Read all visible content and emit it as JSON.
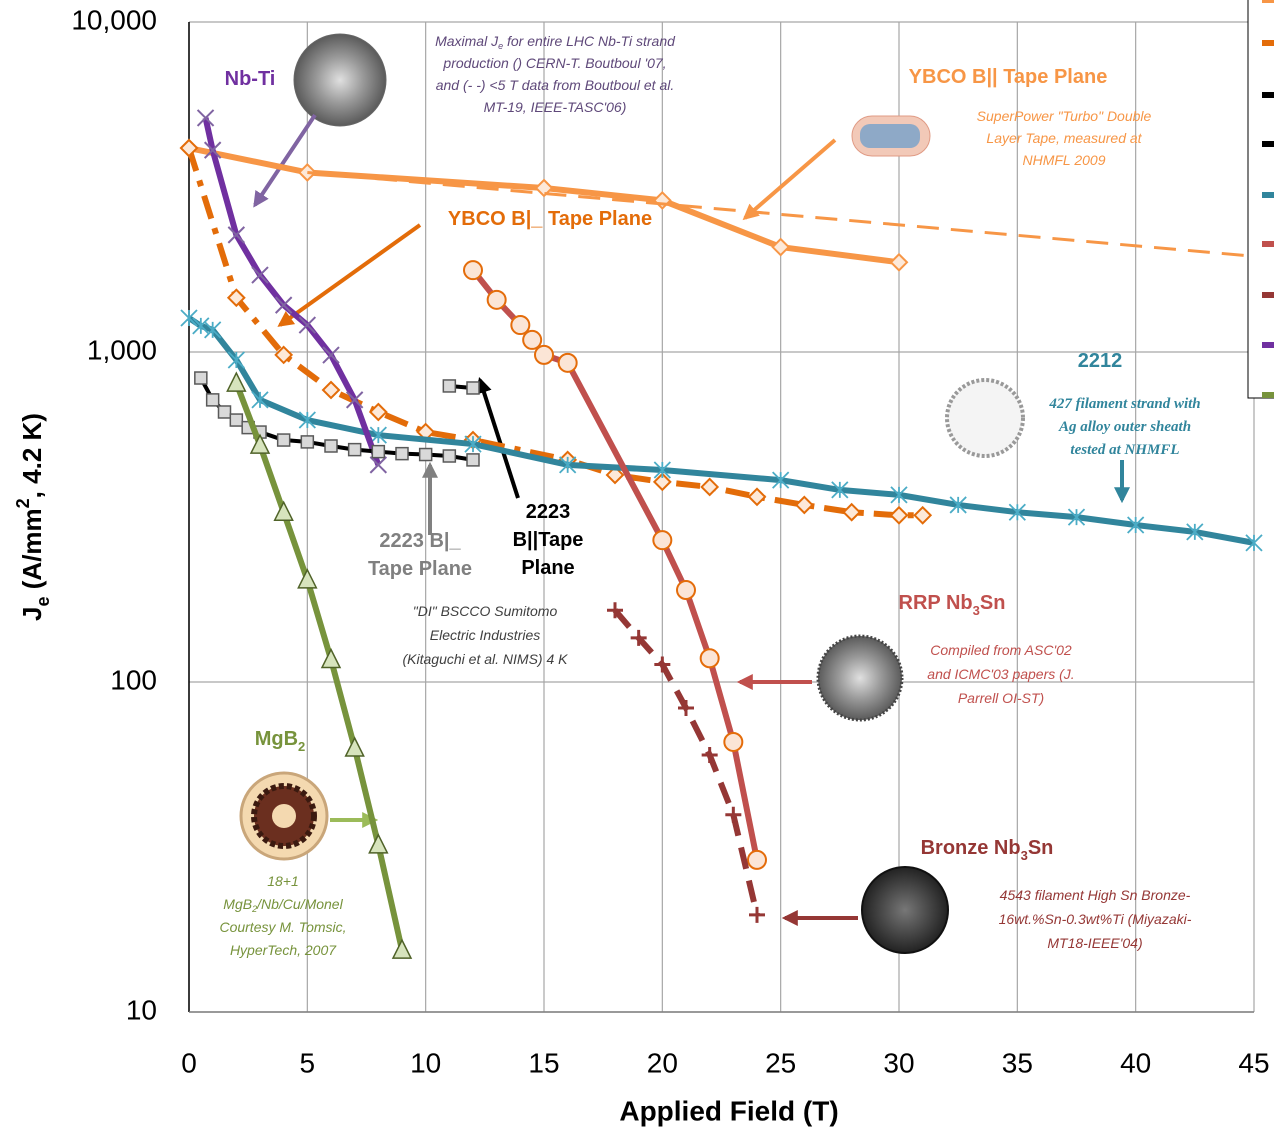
{
  "chart_data": {
    "type": "line",
    "x_label": "Applied Field (T)",
    "y_label": [
      "J",
      "e",
      " (A/mm",
      "2",
      ", 4.2 K)"
    ],
    "xlim": [
      0,
      45
    ],
    "xticks": [
      0,
      5,
      10,
      15,
      20,
      25,
      30,
      35,
      40,
      45
    ],
    "ylim": [
      10,
      10000
    ],
    "yscale": "log",
    "yticks": [
      10,
      100,
      {
        "value": 1000,
        "label": "1,000"
      },
      {
        "value": 10000,
        "label": "10,000"
      }
    ],
    "grid": true,
    "series": [
      {
        "color": "#f79646",
        "marker": "diamond",
        "dash": "solid",
        "x": [
          0,
          5,
          15,
          20,
          25,
          30
        ],
        "values": [
          4150,
          3500,
          3140,
          2880,
          2080,
          1870
        ]
      },
      {
        "color": "#f79646",
        "marker": "none",
        "dash": "dashed",
        "x": [
          5,
          45
        ],
        "values": [
          3500,
          1950
        ]
      },
      {
        "color": "#e36c09",
        "marker": "diamond",
        "dash": "dashdot",
        "x": [
          0,
          2,
          4,
          6,
          8,
          10,
          12,
          16,
          18,
          20,
          22,
          24,
          26,
          28,
          30,
          31
        ],
        "values": [
          4150,
          1460,
          980,
          767,
          658,
          572,
          541,
          471,
          424,
          404,
          390,
          364,
          344,
          327,
          320,
          320
        ]
      },
      {
        "color": "#31859c",
        "marker": "asterisk",
        "dash": "solid",
        "x": [
          0,
          0.5,
          1,
          2,
          3,
          5,
          8,
          12,
          16,
          20,
          25,
          27.5,
          30,
          32.5,
          35,
          37.5,
          40,
          42.5,
          45
        ],
        "values": [
          1268,
          1200,
          1167,
          946,
          716,
          622,
          560,
          526,
          455,
          439,
          409,
          382,
          369,
          344,
          327,
          316,
          299,
          285,
          264
        ]
      },
      {
        "color": "#7030a0",
        "marker": "cross",
        "dash": "solid",
        "x": [
          0.7,
          1,
          2,
          3,
          4,
          5,
          6,
          7,
          8
        ],
        "values": [
          5120,
          4090,
          2264,
          1711,
          1387,
          1207,
          979,
          716,
          455
        ]
      },
      {
        "color": "#000000",
        "marker": "square",
        "dash": "solid",
        "x": [
          0.5,
          1,
          1.5,
          2,
          2.5,
          3,
          4,
          5,
          6,
          7,
          8,
          9,
          10,
          11,
          12
        ],
        "values": [
          834,
          716,
          658,
          622,
          590,
          572,
          541,
          534,
          519,
          506,
          499,
          492,
          489,
          484,
          471
        ]
      },
      {
        "color": "#000000",
        "marker": "square",
        "dash": "solid",
        "x": [
          11,
          12
        ],
        "values": [
          789,
          778
        ]
      },
      {
        "color": "#c0504d",
        "marker": "circle",
        "dash": "solid",
        "x": [
          12,
          13,
          14,
          14.5,
          15,
          16,
          20,
          21,
          22,
          23,
          24
        ],
        "values": [
          1770,
          1439,
          1207,
          1088,
          980,
          927,
          269,
          190,
          118,
          65.8,
          28.9
        ]
      },
      {
        "color": "#953735",
        "marker": "plus",
        "dash": "dashed",
        "x": [
          18,
          19,
          20,
          21,
          22,
          23,
          24
        ],
        "values": [
          165,
          136,
          113,
          83.4,
          60.1,
          39.6,
          19.7
        ]
      },
      {
        "color": "#77933c",
        "marker": "triangle",
        "dash": "solid",
        "x": [
          2,
          3,
          4,
          5,
          6,
          7,
          8,
          9
        ],
        "values": [
          805,
          522,
          327,
          204,
          117,
          63.1,
          32.1,
          15.4
        ]
      }
    ],
    "annotations": [
      {
        "lines": [
          [
            "Nb-Ti"
          ]
        ]
      },
      {
        "lines": [
          [
            "Maximal J",
            "e",
            " for entire LHC Nb-Ti strand"
          ],
          [
            "production () CERN-T. Boutboul '07,"
          ],
          [
            "and (- -) <5 T data from Boutboul et al."
          ],
          [
            "MT-19, IEEE-TASC'06)"
          ]
        ]
      },
      {
        "lines": [
          [
            "YBCO B|| Tape Plane"
          ]
        ]
      },
      {
        "lines": [
          [
            "SuperPower \"Turbo\" Double"
          ],
          [
            "Layer Tape, measured at"
          ],
          [
            "NHMFL 2009"
          ]
        ]
      },
      {
        "lines": [
          [
            "YBCO B|_ Tape Plane"
          ]
        ]
      },
      {
        "lines": [
          [
            "2212"
          ]
        ]
      },
      {
        "lines": [
          [
            "427 filament strand with"
          ],
          [
            "Ag alloy outer sheath"
          ],
          [
            "tested at NHMFL"
          ]
        ]
      },
      {
        "lines": [
          [
            "2223 B|_"
          ],
          [
            "Tape Plane"
          ]
        ]
      },
      {
        "lines": [
          [
            "2223"
          ],
          [
            "B||Tape"
          ],
          [
            "Plane"
          ]
        ]
      },
      {
        "lines": [
          [
            "\"DI\" BSCCO Sumitomo"
          ],
          [
            "Electric Industries"
          ],
          [
            "(Kitaguchi et al. NIMS) 4 K"
          ]
        ]
      },
      {
        "lines": [
          [
            "RRP Nb",
            "3",
            "Sn"
          ]
        ]
      },
      {
        "lines": [
          [
            "Compiled from ASC'02"
          ],
          [
            "and ICMC'03 papers (J."
          ],
          [
            "Parrell OI-ST)"
          ]
        ]
      },
      {
        "lines": [
          [
            "MgB",
            "2"
          ]
        ]
      },
      {
        "lines": [
          [
            "18+1"
          ],
          [
            "MgB",
            "2",
            "/Nb/Cu/Monel"
          ],
          [
            "Courtesy M. Tomsic,"
          ],
          [
            "HyperTech, 2007"
          ]
        ]
      },
      {
        "lines": [
          [
            "Bronze Nb",
            "3",
            "Sn"
          ]
        ]
      },
      {
        "lines": [
          [
            "4543 filament High Sn Bronze-"
          ],
          [
            "16wt.%Sn-0.3wt%Ti (Miyazaki-"
          ],
          [
            "MT18-IEEE'04)"
          ]
        ]
      }
    ]
  }
}
